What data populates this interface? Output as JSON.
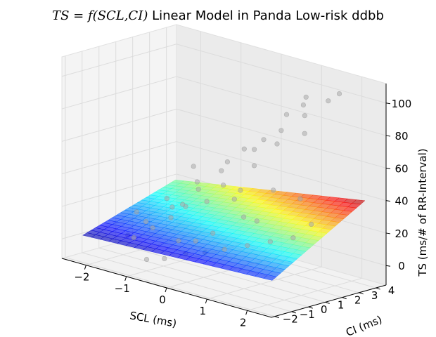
{
  "chart_data": {
    "type": "scatter",
    "title": "TS = f(SCL,CI) Linear Model in Panda Low-risk ddbb",
    "title_math": "TS = f(SCL,CI)",
    "title_text": "Linear Model in Panda Low-risk ddbb",
    "xlabel": "SCL (ms)",
    "ylabel": "CI (ms)",
    "zlabel": "TS (ms/# of RR-Interval)",
    "xlim": [
      -2.6,
      2.6
    ],
    "ylim": [
      -2.2,
      4.6
    ],
    "zlim": [
      -12,
      112
    ],
    "xticks": [
      -2,
      -1,
      0,
      1,
      2
    ],
    "yticks": [
      -2,
      -1,
      0,
      1,
      2,
      3,
      4
    ],
    "zticks": [
      0,
      20,
      40,
      60,
      80,
      100
    ],
    "grid": true,
    "surface_colormap": "jet",
    "point_color": "#aaaaaa",
    "surface": {
      "x_range": [
        -2.5,
        2.2
      ],
      "y_range": [
        -1.2,
        4.3
      ],
      "z_corners": {
        "x_min_y_min": 0,
        "x_max_y_min": 5,
        "x_min_y_max": 18,
        "x_max_y_max": 38
      }
    },
    "points": [
      {
        "x": -1.4,
        "y": -0.8,
        "z": 5
      },
      {
        "x": -1.1,
        "y": -0.4,
        "z": 12
      },
      {
        "x": -0.9,
        "y": 0.2,
        "z": 18
      },
      {
        "x": -0.7,
        "y": 0.6,
        "z": 25
      },
      {
        "x": -0.5,
        "y": -0.3,
        "z": 8
      },
      {
        "x": -0.3,
        "y": 0.9,
        "z": 30
      },
      {
        "x": -0.1,
        "y": 1.4,
        "z": 40
      },
      {
        "x": 0.1,
        "y": 0.3,
        "z": 15
      },
      {
        "x": 0.3,
        "y": 1.1,
        "z": 35
      },
      {
        "x": 0.5,
        "y": 1.8,
        "z": 55
      },
      {
        "x": 0.7,
        "y": 0.7,
        "z": 28
      },
      {
        "x": 0.9,
        "y": 2.2,
        "z": 70
      },
      {
        "x": 1.1,
        "y": 1.5,
        "z": 45
      },
      {
        "x": 1.3,
        "y": 2.8,
        "z": 95
      },
      {
        "x": 1.5,
        "y": 2.4,
        "z": 80
      },
      {
        "x": -1.6,
        "y": 0.4,
        "z": 10
      },
      {
        "x": -1.8,
        "y": -0.2,
        "z": 2
      },
      {
        "x": -1.2,
        "y": 1.0,
        "z": 20
      },
      {
        "x": -0.8,
        "y": 1.6,
        "z": 32
      },
      {
        "x": -0.4,
        "y": 2.0,
        "z": 45
      },
      {
        "x": 0.0,
        "y": 2.4,
        "z": 60
      },
      {
        "x": 0.4,
        "y": 2.6,
        "z": 68
      },
      {
        "x": 0.8,
        "y": 3.0,
        "z": 85
      },
      {
        "x": 1.2,
        "y": 3.2,
        "z": 98
      },
      {
        "x": -1.0,
        "y": -1.0,
        "z": -5
      },
      {
        "x": -0.6,
        "y": -0.9,
        "z": -2
      },
      {
        "x": -0.2,
        "y": -0.6,
        "z": 3
      },
      {
        "x": 0.2,
        "y": -0.4,
        "z": 6
      },
      {
        "x": 0.6,
        "y": -0.2,
        "z": 10
      },
      {
        "x": 1.0,
        "y": 0.2,
        "z": 14
      },
      {
        "x": 1.4,
        "y": 0.6,
        "z": 18
      },
      {
        "x": 1.8,
        "y": 1.0,
        "z": 22
      },
      {
        "x": 2.0,
        "y": 1.6,
        "z": 30
      },
      {
        "x": -2.0,
        "y": 0.8,
        "z": 12
      },
      {
        "x": -1.5,
        "y": 1.4,
        "z": 22
      },
      {
        "x": -1.0,
        "y": 2.0,
        "z": 34
      },
      {
        "x": -0.5,
        "y": 2.6,
        "z": 48
      },
      {
        "x": 0.0,
        "y": 3.0,
        "z": 58
      },
      {
        "x": 0.5,
        "y": 3.4,
        "z": 72
      },
      {
        "x": 1.0,
        "y": 3.6,
        "z": 84
      },
      {
        "x": 1.5,
        "y": 3.8,
        "z": 96
      },
      {
        "x": 1.9,
        "y": 3.5,
        "z": 104
      },
      {
        "x": -0.9,
        "y": 0.9,
        "z": 24
      },
      {
        "x": -0.2,
        "y": 0.0,
        "z": 9
      },
      {
        "x": 0.9,
        "y": 1.0,
        "z": 26
      },
      {
        "x": 1.6,
        "y": 1.9,
        "z": 42
      },
      {
        "x": -1.3,
        "y": 2.5,
        "z": 40
      },
      {
        "x": 0.2,
        "y": 1.7,
        "z": 38
      }
    ]
  }
}
